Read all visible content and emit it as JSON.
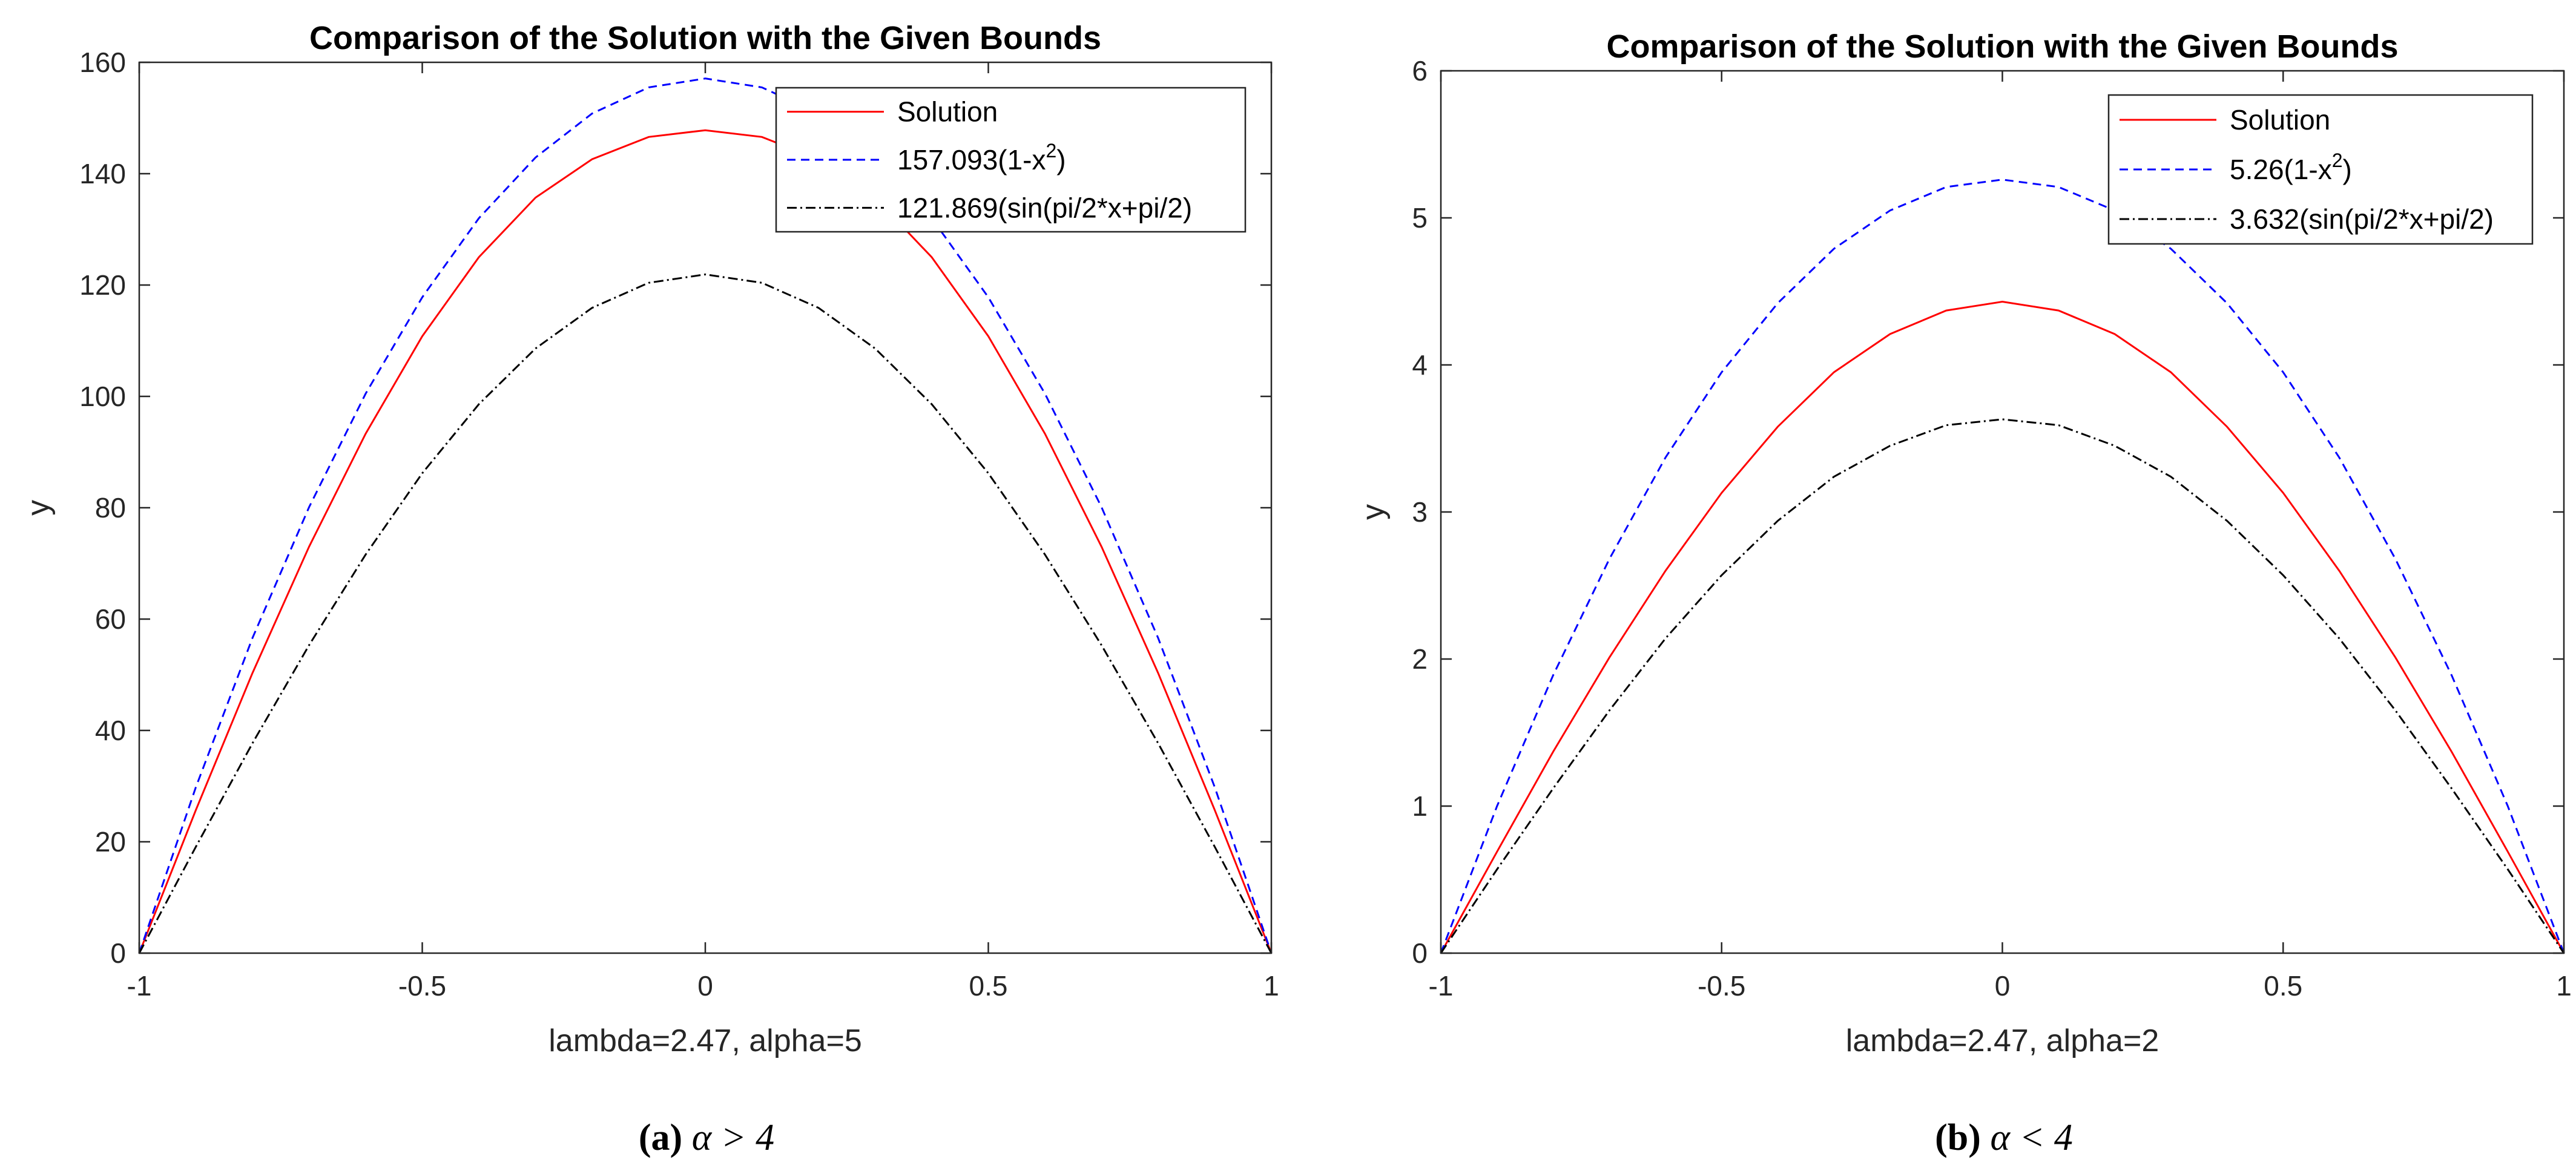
{
  "chart_data": [
    {
      "type": "line",
      "title": "Comparison of the Solution with the Given Bounds",
      "xlabel": "lambda=2.47, alpha=5",
      "ylabel": "y",
      "xlim": [
        -1,
        1
      ],
      "ylim": [
        0,
        160
      ],
      "xticks": [
        "-1",
        "-0.5",
        "0",
        "0.5",
        "1"
      ],
      "yticks": [
        "0",
        "20",
        "40",
        "60",
        "80",
        "100",
        "120",
        "140",
        "160"
      ],
      "grid": false,
      "legend_position": "top-right",
      "caption": {
        "letter": "(a)",
        "math": "α > 4"
      },
      "series": [
        {
          "name": "Solution",
          "color": "#ff0000",
          "style": "solid",
          "x": [
            -1.0,
            -0.9,
            -0.8,
            -0.7,
            -0.6,
            -0.5,
            -0.4,
            -0.3,
            -0.2,
            -0.1,
            0.0,
            0.1,
            0.2,
            0.3,
            0.4,
            0.5,
            0.6,
            0.7,
            0.8,
            0.9,
            1.0
          ],
          "y": [
            0,
            25.7,
            50.3,
            73.0,
            93.3,
            110.8,
            125.0,
            135.7,
            142.6,
            146.6,
            147.8,
            146.6,
            142.6,
            135.7,
            125.0,
            110.8,
            93.3,
            73.0,
            50.3,
            25.7,
            0
          ]
        },
        {
          "name": "157.093(1-x",
          "name_sup": "2",
          "name_tail": ")",
          "color": "#0000ff",
          "style": "dashed",
          "x": [
            -1.0,
            -0.9,
            -0.8,
            -0.7,
            -0.6,
            -0.5,
            -0.4,
            -0.3,
            -0.2,
            -0.1,
            0.0,
            0.1,
            0.2,
            0.3,
            0.4,
            0.5,
            0.6,
            0.7,
            0.8,
            0.9,
            1.0
          ],
          "y": [
            0,
            29.8,
            56.6,
            80.1,
            100.5,
            117.8,
            132.0,
            142.9,
            150.8,
            155.5,
            157.1,
            155.5,
            150.8,
            142.9,
            132.0,
            117.8,
            100.5,
            80.1,
            56.6,
            29.8,
            0
          ]
        },
        {
          "name": "121.869(sin(pi/2*x+pi/2)",
          "color": "#000000",
          "style": "dashdot",
          "x": [
            -1.0,
            -0.9,
            -0.8,
            -0.7,
            -0.6,
            -0.5,
            -0.4,
            -0.3,
            -0.2,
            -0.1,
            0.0,
            0.1,
            0.2,
            0.3,
            0.4,
            0.5,
            0.6,
            0.7,
            0.8,
            0.9,
            1.0
          ],
          "y": [
            0,
            19.1,
            37.7,
            55.3,
            71.6,
            86.2,
            98.6,
            108.6,
            115.9,
            120.4,
            121.9,
            120.4,
            115.9,
            108.6,
            98.6,
            86.2,
            71.6,
            55.3,
            37.7,
            19.1,
            0
          ]
        }
      ]
    },
    {
      "type": "line",
      "title": "Comparison of the Solution with the Given Bounds",
      "xlabel": "lambda=2.47, alpha=2",
      "ylabel": "y",
      "xlim": [
        -1,
        1
      ],
      "ylim": [
        0,
        6
      ],
      "xticks": [
        "-1",
        "-0.5",
        "0",
        "0.5",
        "1"
      ],
      "yticks": [
        "0",
        "1",
        "2",
        "3",
        "4",
        "5",
        "6"
      ],
      "grid": false,
      "legend_position": "top-right",
      "caption": {
        "letter": "(b)",
        "math": "α < 4"
      },
      "series": [
        {
          "name": "Solution",
          "color": "#ff0000",
          "style": "solid",
          "x": [
            -1.0,
            -0.9,
            -0.8,
            -0.7,
            -0.6,
            -0.5,
            -0.4,
            -0.3,
            -0.2,
            -0.1,
            0.0,
            0.1,
            0.2,
            0.3,
            0.4,
            0.5,
            0.6,
            0.7,
            0.8,
            0.9,
            1.0
          ],
          "y": [
            0,
            0.69,
            1.37,
            2.01,
            2.6,
            3.13,
            3.58,
            3.95,
            4.21,
            4.37,
            4.43,
            4.37,
            4.21,
            3.95,
            3.58,
            3.13,
            2.6,
            2.01,
            1.37,
            0.69,
            0
          ]
        },
        {
          "name": "5.26(1-x",
          "name_sup": "2",
          "name_tail": ")",
          "color": "#0000ff",
          "style": "dashed",
          "x": [
            -1.0,
            -0.9,
            -0.8,
            -0.7,
            -0.6,
            -0.5,
            -0.4,
            -0.3,
            -0.2,
            -0.1,
            0.0,
            0.1,
            0.2,
            0.3,
            0.4,
            0.5,
            0.6,
            0.7,
            0.8,
            0.9,
            1.0
          ],
          "y": [
            0,
            1.0,
            1.89,
            2.68,
            3.37,
            3.95,
            4.42,
            4.79,
            5.05,
            5.21,
            5.26,
            5.21,
            5.05,
            4.79,
            4.42,
            3.95,
            3.37,
            2.68,
            1.89,
            1.0,
            0
          ]
        },
        {
          "name": "3.632(sin(pi/2*x+pi/2)",
          "color": "#000000",
          "style": "dashdot",
          "x": [
            -1.0,
            -0.9,
            -0.8,
            -0.7,
            -0.6,
            -0.5,
            -0.4,
            -0.3,
            -0.2,
            -0.1,
            0.0,
            0.1,
            0.2,
            0.3,
            0.4,
            0.5,
            0.6,
            0.7,
            0.8,
            0.9,
            1.0
          ],
          "y": [
            0,
            0.57,
            1.12,
            1.65,
            2.14,
            2.57,
            2.94,
            3.24,
            3.45,
            3.59,
            3.63,
            3.59,
            3.45,
            3.24,
            2.94,
            2.57,
            2.14,
            1.65,
            1.12,
            0.57,
            0
          ]
        }
      ]
    }
  ]
}
